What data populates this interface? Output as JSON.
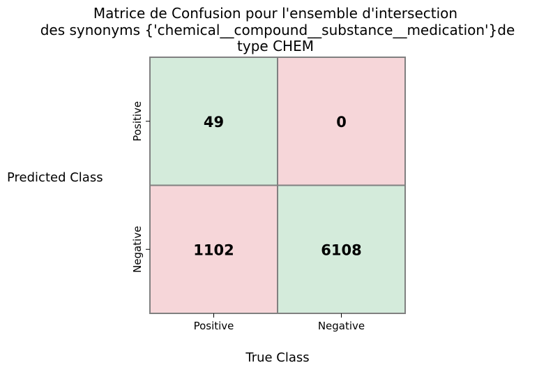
{
  "chart_data": {
    "type": "heatmap",
    "title": [
      "Matrice de Confusion pour l'ensemble d'intersection",
      "des synonyms {'chemical__compound__substance__medication'}de",
      "type CHEM"
    ],
    "xlabel": "True Class",
    "ylabel": "Predicted Class",
    "x_categories": [
      "Positive",
      "Negative"
    ],
    "y_categories": [
      "Positive",
      "Negative"
    ],
    "matrix": [
      [
        49,
        0
      ],
      [
        1102,
        6108
      ]
    ],
    "colors": {
      "correct": "#d4ebdb",
      "incorrect": "#f6d6d9",
      "border": "#808080"
    }
  }
}
